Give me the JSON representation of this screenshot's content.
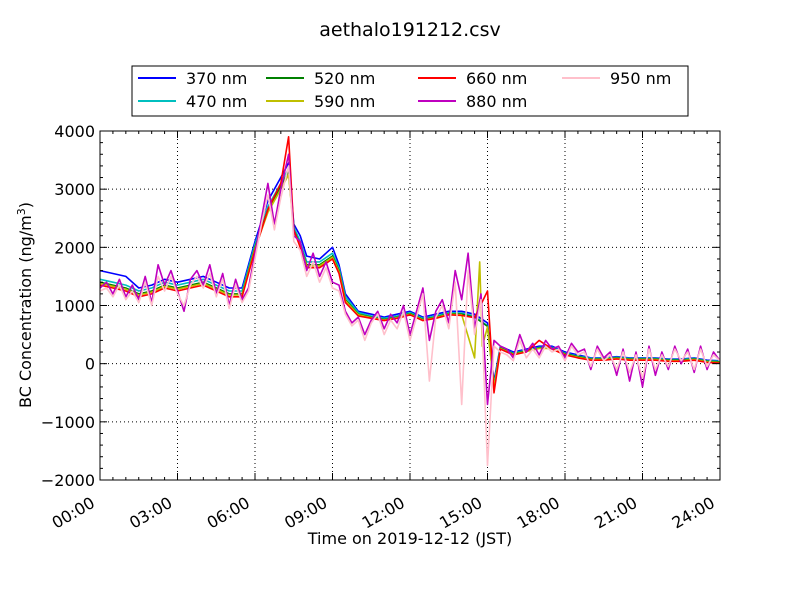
{
  "chart_data": {
    "type": "line",
    "title": "aethalo191212.csv",
    "xlabel": "Time on 2019-12-12 (JST)",
    "ylabel_main": "BC Concentration (ng/m",
    "ylabel_sup": "3",
    "ylabel_close": ")",
    "xlim_hours": [
      0,
      24
    ],
    "ylim": [
      -2000,
      4000
    ],
    "x_ticks": [
      {
        "hour": 0,
        "label": "00:00"
      },
      {
        "hour": 3,
        "label": "03:00"
      },
      {
        "hour": 6,
        "label": "06:00"
      },
      {
        "hour": 9,
        "label": "09:00"
      },
      {
        "hour": 12,
        "label": "12:00"
      },
      {
        "hour": 15,
        "label": "15:00"
      },
      {
        "hour": 18,
        "label": "18:00"
      },
      {
        "hour": 21,
        "label": "21:00"
      },
      {
        "hour": 24,
        "label": "24:00"
      }
    ],
    "y_ticks": [
      {
        "value": 4000,
        "label": "4000"
      },
      {
        "value": 3000,
        "label": "3000"
      },
      {
        "value": 2000,
        "label": "2000"
      },
      {
        "value": 1000,
        "label": "1000"
      },
      {
        "value": 0,
        "label": "0"
      },
      {
        "value": -1000,
        "label": "−1000"
      },
      {
        "value": -2000,
        "label": "−2000"
      }
    ],
    "grid": true,
    "legend_position": "top, above plot",
    "series": [
      {
        "name": "370 nm",
        "color": "#0000ff",
        "hours": [
          0,
          0.5,
          1,
          1.5,
          2,
          2.5,
          3,
          3.5,
          4,
          4.5,
          5,
          5.5,
          6,
          6.5,
          7,
          7.3,
          7.5,
          7.75,
          8,
          8.5,
          9,
          9.25,
          9.5,
          10,
          10.5,
          11,
          11.5,
          12,
          12.5,
          13,
          13.5,
          14,
          14.5,
          15,
          15.25,
          15.5,
          16,
          16.5,
          17,
          17.5,
          18,
          18.5,
          19,
          19.5,
          20,
          20.5,
          21,
          21.5,
          22,
          22.5,
          23,
          23.5,
          24
        ],
        "values": [
          1600,
          1550,
          1500,
          1300,
          1350,
          1450,
          1400,
          1450,
          1500,
          1400,
          1300,
          1300,
          2100,
          2800,
          3200,
          3450,
          2400,
          2200,
          1850,
          1800,
          2000,
          1700,
          1200,
          900,
          850,
          800,
          850,
          900,
          800,
          850,
          900,
          900,
          850,
          700,
          -300,
          300,
          200,
          250,
          300,
          300,
          200,
          150,
          100,
          100,
          120,
          100,
          100,
          100,
          80,
          80,
          100,
          60,
          50
        ]
      },
      {
        "name": "470 nm",
        "color": "#00bfbf",
        "hours": [
          0,
          0.5,
          1,
          1.5,
          2,
          2.5,
          3,
          3.5,
          4,
          4.5,
          5,
          5.5,
          6,
          6.5,
          7,
          7.3,
          7.5,
          7.75,
          8,
          8.5,
          9,
          9.25,
          9.5,
          10,
          10.5,
          11,
          11.5,
          12,
          12.5,
          13,
          13.5,
          14,
          14.5,
          15,
          15.25,
          15.5,
          16,
          16.5,
          17,
          17.5,
          18,
          18.5,
          19,
          19.5,
          20,
          20.5,
          21,
          21.5,
          22,
          22.5,
          23,
          23.5,
          24
        ],
        "values": [
          1450,
          1400,
          1350,
          1250,
          1300,
          1400,
          1350,
          1400,
          1450,
          1350,
          1250,
          1250,
          2050,
          2700,
          3100,
          3350,
          2350,
          2100,
          1750,
          1750,
          1900,
          1650,
          1150,
          880,
          820,
          780,
          820,
          880,
          780,
          820,
          880,
          870,
          820,
          650,
          -350,
          280,
          180,
          230,
          280,
          280,
          180,
          130,
          90,
          90,
          110,
          90,
          90,
          90,
          70,
          70,
          90,
          50,
          40
        ]
      },
      {
        "name": "520 nm",
        "color": "#008000",
        "hours": [
          0,
          0.5,
          1,
          1.5,
          2,
          2.5,
          3,
          3.5,
          4,
          4.5,
          5,
          5.5,
          6,
          6.5,
          7,
          7.3,
          7.5,
          7.75,
          8,
          8.5,
          9,
          9.25,
          9.5,
          10,
          10.5,
          11,
          11.5,
          12,
          12.5,
          13,
          13.5,
          14,
          14.5,
          15,
          15.25,
          15.5,
          16,
          16.5,
          17,
          17.5,
          18,
          18.5,
          19,
          19.5,
          20,
          20.5,
          21,
          21.5,
          22,
          22.5,
          23,
          23.5,
          24
        ],
        "values": [
          1400,
          1350,
          1300,
          1200,
          1250,
          1350,
          1300,
          1350,
          1400,
          1300,
          1200,
          1200,
          2000,
          2650,
          3050,
          3300,
          2300,
          2050,
          1700,
          1700,
          1850,
          1600,
          1100,
          850,
          800,
          760,
          800,
          860,
          760,
          800,
          860,
          850,
          800,
          640,
          -380,
          270,
          170,
          220,
          270,
          270,
          170,
          120,
          80,
          80,
          100,
          80,
          80,
          80,
          60,
          60,
          80,
          40,
          30
        ]
      },
      {
        "name": "590 nm",
        "color": "#bfbf00",
        "hours": [
          0,
          0.5,
          1,
          1.5,
          2,
          2.5,
          3,
          3.5,
          4,
          4.5,
          5,
          5.5,
          6,
          6.5,
          7,
          7.3,
          7.5,
          7.75,
          8,
          8.5,
          9,
          9.25,
          9.5,
          10,
          10.5,
          11,
          11.5,
          12,
          12.5,
          13,
          13.5,
          14,
          14.5,
          14.7,
          14.8,
          15,
          15.25,
          15.5,
          16,
          16.5,
          17,
          17.5,
          18,
          18.5,
          19,
          19.5,
          20,
          20.5,
          21,
          21.5,
          22,
          22.5,
          23,
          23.5,
          24
        ],
        "values": [
          1380,
          1330,
          1280,
          1180,
          1230,
          1330,
          1280,
          1330,
          1380,
          1280,
          1180,
          1180,
          1980,
          2600,
          3000,
          3250,
          2280,
          2030,
          1680,
          1680,
          1830,
          1580,
          1080,
          840,
          790,
          750,
          790,
          850,
          750,
          790,
          850,
          840,
          100,
          1750,
          300,
          630,
          -400,
          260,
          160,
          210,
          260,
          260,
          160,
          110,
          70,
          70,
          90,
          70,
          70,
          70,
          50,
          50,
          70,
          30,
          20
        ]
      },
      {
        "name": "660 nm",
        "color": "#ff0000",
        "hours": [
          0,
          0.5,
          1,
          1.5,
          2,
          2.5,
          3,
          3.5,
          4,
          4.5,
          5,
          5.5,
          6,
          6.5,
          7,
          7.3,
          7.5,
          7.75,
          8,
          8.5,
          9,
          9.25,
          9.5,
          10,
          10.5,
          11,
          11.5,
          12,
          12.5,
          13,
          13.5,
          14,
          14.5,
          15,
          15.25,
          15.5,
          16,
          16.5,
          17,
          17.5,
          18,
          18.5,
          19,
          19.5,
          20,
          20.5,
          21,
          21.5,
          22,
          22.5,
          23,
          23.5,
          24
        ],
        "values": [
          1350,
          1300,
          1250,
          1150,
          1200,
          1300,
          1250,
          1300,
          1350,
          1250,
          1150,
          1150,
          1950,
          2650,
          3100,
          3900,
          2300,
          2000,
          1650,
          1650,
          1800,
          1550,
          1050,
          820,
          780,
          740,
          780,
          840,
          740,
          780,
          840,
          830,
          790,
          1250,
          -500,
          250,
          150,
          200,
          400,
          250,
          150,
          100,
          60,
          60,
          80,
          60,
          60,
          60,
          40,
          40,
          60,
          20,
          10
        ]
      },
      {
        "name": "880 nm",
        "color": "#bf00bf",
        "hours": [
          0,
          0.25,
          0.5,
          0.75,
          1,
          1.25,
          1.5,
          1.75,
          2,
          2.25,
          2.5,
          2.75,
          3,
          3.25,
          3.5,
          3.75,
          4,
          4.25,
          4.5,
          4.75,
          5,
          5.25,
          5.5,
          5.75,
          6,
          6.25,
          6.5,
          6.75,
          7,
          7.3,
          7.5,
          7.75,
          8,
          8.25,
          8.5,
          8.75,
          9,
          9.25,
          9.5,
          9.75,
          10,
          10.25,
          10.5,
          10.75,
          11,
          11.25,
          11.5,
          11.75,
          12,
          12.25,
          12.5,
          12.75,
          13,
          13.25,
          13.5,
          13.75,
          14,
          14.25,
          14.5,
          14.75,
          15,
          15.25,
          15.5,
          15.75,
          16,
          16.25,
          16.5,
          16.75,
          17,
          17.25,
          17.5,
          17.75,
          18,
          18.25,
          18.5,
          18.75,
          19,
          19.25,
          19.5,
          19.75,
          20,
          20.25,
          20.5,
          20.75,
          21,
          21.25,
          21.5,
          21.75,
          22,
          22.25,
          22.5,
          22.75,
          23,
          23.25,
          23.5,
          23.75,
          24
        ],
        "values": [
          1300,
          1400,
          1200,
          1450,
          1150,
          1350,
          1100,
          1500,
          1050,
          1700,
          1350,
          1600,
          1250,
          900,
          1450,
          1600,
          1350,
          1700,
          1200,
          1550,
          1000,
          1450,
          1100,
          1300,
          1900,
          2500,
          3100,
          2400,
          3000,
          3600,
          2200,
          2100,
          1600,
          1900,
          1500,
          1750,
          1400,
          1350,
          900,
          700,
          800,
          500,
          750,
          900,
          600,
          850,
          700,
          1000,
          500,
          900,
          1300,
          400,
          900,
          1100,
          700,
          1600,
          1100,
          1900,
          600,
          1200,
          -700,
          400,
          300,
          250,
          100,
          500,
          200,
          350,
          150,
          400,
          250,
          300,
          100,
          350,
          200,
          250,
          -100,
          300,
          100,
          200,
          -200,
          250,
          -300,
          200,
          -400,
          300,
          -200,
          200,
          -100,
          300,
          0,
          250,
          -150,
          300,
          -100,
          200,
          50
        ]
      },
      {
        "name": "950 nm",
        "color": "#ffc0cb",
        "hours": [
          0,
          0.25,
          0.5,
          0.75,
          1,
          1.25,
          1.5,
          1.75,
          2,
          2.25,
          2.5,
          2.75,
          3,
          3.25,
          3.5,
          3.75,
          4,
          4.25,
          4.5,
          4.75,
          5,
          5.25,
          5.5,
          5.75,
          6,
          6.25,
          6.5,
          6.75,
          7,
          7.3,
          7.5,
          7.75,
          8,
          8.25,
          8.5,
          8.75,
          9,
          9.25,
          9.5,
          9.75,
          10,
          10.25,
          10.5,
          10.75,
          11,
          11.25,
          11.5,
          11.75,
          12,
          12.25,
          12.5,
          12.75,
          13,
          13.25,
          13.5,
          13.75,
          14,
          14.25,
          14.5,
          14.75,
          15,
          15.25,
          15.5,
          15.75,
          16,
          16.25,
          16.5,
          16.75,
          17,
          17.25,
          17.5,
          17.75,
          18,
          18.25,
          18.5,
          18.75,
          19,
          19.25,
          19.5,
          19.75,
          20,
          20.25,
          20.5,
          20.75,
          21,
          21.25,
          21.5,
          21.75,
          22,
          22.25,
          22.5,
          22.75,
          23,
          23.25,
          23.5,
          23.75,
          24
        ],
        "values": [
          1250,
          1300,
          1150,
          1350,
          1100,
          1250,
          1050,
          1400,
          1000,
          1500,
          1250,
          1500,
          1200,
          1000,
          1350,
          1500,
          1300,
          1550,
          1150,
          1450,
          950,
          1350,
          1050,
          1250,
          1800,
          2400,
          2900,
          2300,
          2850,
          3400,
          2100,
          1950,
          1500,
          1750,
          1400,
          1650,
          1300,
          1250,
          850,
          650,
          750,
          400,
          700,
          850,
          500,
          750,
          600,
          900,
          400,
          800,
          1200,
          -300,
          800,
          1000,
          600,
          1400,
          -700,
          1600,
          500,
          1100,
          -1750,
          300,
          200,
          150,
          50,
          400,
          100,
          250,
          100,
          300,
          200,
          250,
          50,
          300,
          150,
          200,
          -50,
          250,
          50,
          150,
          -100,
          200,
          -150,
          150,
          -250,
          250,
          -100,
          150,
          -50,
          250,
          50,
          200,
          -100,
          250,
          -50,
          150,
          50
        ]
      }
    ]
  }
}
